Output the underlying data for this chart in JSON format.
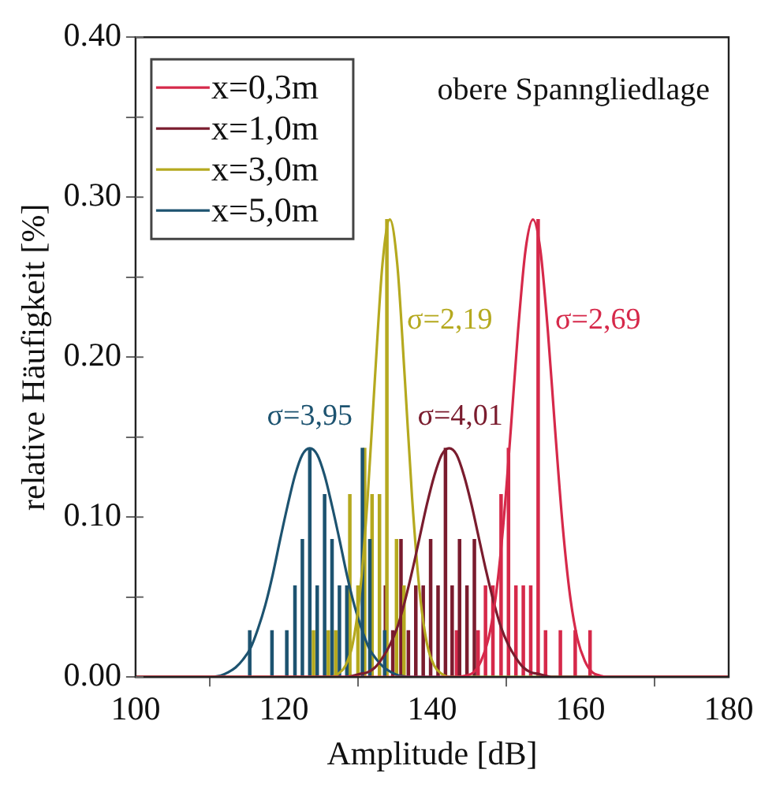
{
  "chart_data": {
    "type": "line",
    "xlabel": "Amplitude [dB]",
    "ylabel": "relative Häufigkeit [%]",
    "xlim": [
      100,
      180
    ],
    "xticks": [
      100,
      120,
      140,
      160,
      180
    ],
    "ylim": [
      0,
      0.4
    ],
    "yticks": [
      {
        "value": 0,
        "label": "0.00"
      },
      {
        "value": 0.05,
        "label": null
      },
      {
        "value": 0.1,
        "label": "0.10"
      },
      {
        "value": 0.15,
        "label": null
      },
      {
        "value": 0.2,
        "label": "0.20"
      },
      {
        "value": 0.25,
        "label": null
      },
      {
        "value": 0.3,
        "label": "0.30"
      },
      {
        "value": 0.35,
        "label": null
      },
      {
        "value": 0.4,
        "label": "0.40"
      }
    ],
    "grid": false,
    "legend": "top left",
    "marker": "none",
    "line_style": "solid",
    "annotations": [
      "obere Spanngliedlage",
      "σ=2,69",
      "σ=2,19",
      "σ=3,95",
      "σ=4,01"
    ],
    "series": [
      {
        "type": "bar",
        "color": "#1d5370",
        "x": [
          115.4,
          118.4,
          120.4,
          121.5,
          122.5,
          123.5,
          124.5,
          125.5,
          126.5,
          127.5,
          128.5,
          130.6,
          131.6,
          133.6
        ],
        "values": [
          0.029,
          0.029,
          0.029,
          0.057,
          0.086,
          0.143,
          0.057,
          0.114,
          0.086,
          0.057,
          0.057,
          0.143,
          0.086,
          0.029
        ]
      },
      {
        "type": "bar",
        "color": "#b5a91f",
        "x": [
          124,
          126,
          127,
          128.9,
          130,
          130.9,
          131.9,
          132.9,
          133.9,
          135.2,
          136.2
        ],
        "values": [
          0.029,
          0.029,
          0.029,
          0.114,
          0.057,
          0.143,
          0.114,
          0.114,
          0.286,
          0.086,
          0.057
        ]
      },
      {
        "type": "bar",
        "color": "#7a1c2e",
        "x": [
          133.7,
          134.7,
          135.8,
          136.8,
          137.8,
          138.8,
          139.8,
          140.8,
          141.8,
          142.7,
          143.7,
          144.7,
          145.7
        ],
        "values": [
          0.057,
          0.029,
          0.086,
          0.029,
          0.057,
          0.057,
          0.086,
          0.057,
          0.143,
          0.057,
          0.086,
          0.057,
          0.086
        ]
      },
      {
        "type": "bar",
        "color": "#d6294a",
        "x": [
          143.3,
          146.2,
          147.2,
          148.2,
          149.3,
          150.3,
          151.3,
          152.3,
          153.3,
          154.3,
          155.3,
          157.3,
          159.3,
          161.3
        ],
        "values": [
          0.029,
          0.029,
          0.057,
          0.057,
          0.114,
          0.143,
          0.057,
          0.057,
          0.057,
          0.286,
          0.029,
          0.029,
          0.029,
          0.029
        ]
      },
      {
        "name": "x=0,3m",
        "color": "#d6294a",
        "x": [
          100,
          142.6,
          144.6,
          145.6,
          146.6,
          147.6,
          148.6,
          149.6,
          150.6,
          151.6,
          152.6,
          153.6,
          154.6,
          155.6,
          156.6,
          157.6,
          158.6,
          159.6,
          160.6,
          161.6,
          162.6,
          163.6,
          164.6,
          166.6,
          180
        ],
        "values": [
          0,
          0,
          0.001,
          0.003,
          0.01,
          0.024,
          0.051,
          0.095,
          0.154,
          0.217,
          0.267,
          0.286,
          0.267,
          0.217,
          0.154,
          0.095,
          0.051,
          0.024,
          0.01,
          0.003,
          0.001,
          0,
          0,
          0,
          0
        ]
      },
      {
        "name": "x=1,0m",
        "color": "#7a1c2e",
        "x": [
          100,
          128.3,
          130.3,
          131.3,
          132.3,
          133.3,
          134.3,
          135.3,
          136.3,
          137.3,
          138.3,
          139.3,
          140.3,
          141.3,
          142.3,
          143.3,
          144.3,
          145.3,
          146.3,
          147.3,
          148.3,
          149.3,
          150.3,
          151.3,
          152.3,
          153.3,
          154.3,
          156.3,
          180
        ],
        "values": [
          0,
          0,
          0.002,
          0.003,
          0.006,
          0.012,
          0.02,
          0.031,
          0.047,
          0.066,
          0.087,
          0.108,
          0.126,
          0.139,
          0.143,
          0.139,
          0.126,
          0.108,
          0.087,
          0.066,
          0.047,
          0.031,
          0.02,
          0.012,
          0.006,
          0.003,
          0.002,
          0,
          0
        ]
      },
      {
        "name": "x=3,0m",
        "color": "#b5a91f",
        "x": [
          100,
          126.3,
          127.3,
          128.3,
          129.3,
          130.3,
          131.3,
          132.3,
          133.3,
          134.3,
          135.3,
          136.3,
          137.3,
          138.3,
          139.3,
          140.3,
          141.3,
          142.3,
          180
        ],
        "values": [
          0,
          0,
          0.002,
          0.007,
          0.021,
          0.054,
          0.112,
          0.188,
          0.258,
          0.286,
          0.258,
          0.188,
          0.112,
          0.054,
          0.021,
          0.007,
          0.002,
          0,
          0
        ]
      },
      {
        "name": "x=5,0m",
        "color": "#1d5370",
        "x": [
          100,
          109.5,
          111.5,
          112.5,
          113.5,
          114.5,
          115.5,
          116.5,
          117.5,
          118.5,
          119.5,
          120.5,
          121.5,
          122.5,
          123.5,
          124.5,
          125.5,
          126.5,
          127.5,
          128.5,
          129.5,
          130.5,
          131.5,
          132.5,
          133.5,
          134.5,
          135.5,
          137.5,
          180
        ],
        "values": [
          0,
          0,
          0.001,
          0.003,
          0.006,
          0.011,
          0.018,
          0.03,
          0.045,
          0.064,
          0.086,
          0.107,
          0.126,
          0.139,
          0.143,
          0.139,
          0.126,
          0.107,
          0.086,
          0.064,
          0.045,
          0.03,
          0.018,
          0.011,
          0.006,
          0.003,
          0.001,
          0,
          0
        ]
      }
    ]
  }
}
